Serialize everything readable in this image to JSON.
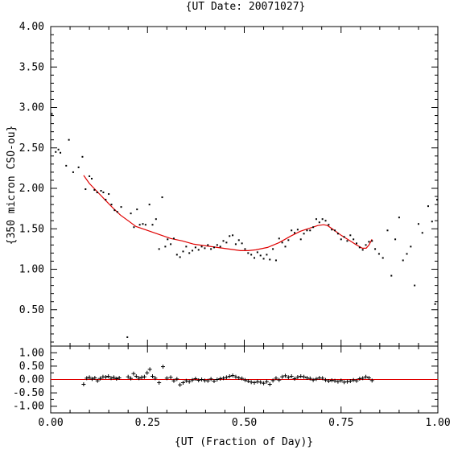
{
  "chart_data": [
    {
      "type": "scatter",
      "title": "{UT Date: 20071027}",
      "xlabel": "",
      "ylabel": "{350 micron CSO-ou}",
      "xlim": [
        0,
        1
      ],
      "ylim": [
        0.05,
        4.0
      ],
      "x_ticks": [
        0.0,
        0.25,
        0.5,
        0.75,
        1.0
      ],
      "x_tick_labels": [],
      "y_ticks": [
        0.5,
        1.0,
        1.5,
        2.0,
        2.5,
        3.0,
        3.5,
        4.0
      ],
      "y_tick_labels": [
        "0.50",
        "1.00",
        "1.50",
        "2.00",
        "2.50",
        "3.00",
        "3.50",
        "4.00"
      ],
      "series": [
        {
          "kind": "points",
          "color": "#000000",
          "x": [
            0.003,
            0.013,
            0.02,
            0.025,
            0.04,
            0.047,
            0.058,
            0.072,
            0.082,
            0.09,
            0.1,
            0.106,
            0.113,
            0.12,
            0.13,
            0.136,
            0.142,
            0.15,
            0.157,
            0.165,
            0.172,
            0.182,
            0.198,
            0.207,
            0.215,
            0.223,
            0.23,
            0.238,
            0.245,
            0.255,
            0.263,
            0.272,
            0.28,
            0.288,
            0.296,
            0.302,
            0.31,
            0.318,
            0.326,
            0.334,
            0.342,
            0.35,
            0.358,
            0.366,
            0.374,
            0.382,
            0.39,
            0.398,
            0.406,
            0.414,
            0.422,
            0.43,
            0.438,
            0.446,
            0.454,
            0.462,
            0.47,
            0.478,
            0.486,
            0.494,
            0.502,
            0.51,
            0.518,
            0.526,
            0.534,
            0.542,
            0.55,
            0.558,
            0.566,
            0.574,
            0.582,
            0.59,
            0.598,
            0.606,
            0.614,
            0.622,
            0.63,
            0.638,
            0.646,
            0.654,
            0.662,
            0.67,
            0.678,
            0.686,
            0.694,
            0.702,
            0.71,
            0.718,
            0.726,
            0.734,
            0.742,
            0.75,
            0.758,
            0.766,
            0.774,
            0.782,
            0.79,
            0.798,
            0.806,
            0.814,
            0.822,
            0.83,
            0.838,
            0.848,
            0.858,
            0.87,
            0.88,
            0.89,
            0.9,
            0.91,
            0.92,
            0.93,
            0.94,
            0.95,
            0.96,
            0.975,
            0.985,
            0.993,
            0.998
          ],
          "y": [
            2.92,
            2.45,
            2.48,
            2.44,
            2.28,
            2.6,
            2.2,
            2.26,
            2.39,
            1.99,
            2.15,
            2.12,
            1.98,
            1.95,
            1.97,
            1.95,
            1.86,
            1.93,
            1.8,
            1.73,
            1.71,
            1.77,
            0.16,
            1.69,
            1.52,
            1.74,
            1.55,
            1.56,
            1.55,
            1.8,
            1.55,
            1.62,
            1.25,
            1.89,
            1.28,
            1.37,
            1.31,
            1.38,
            1.18,
            1.15,
            1.22,
            1.28,
            1.2,
            1.23,
            1.27,
            1.24,
            1.28,
            1.26,
            1.3,
            1.25,
            1.27,
            1.3,
            1.28,
            1.35,
            1.33,
            1.41,
            1.42,
            1.31,
            1.36,
            1.32,
            1.25,
            1.2,
            1.18,
            1.14,
            1.21,
            1.17,
            1.13,
            1.18,
            1.12,
            1.25,
            1.11,
            1.38,
            1.33,
            1.28,
            1.36,
            1.48,
            1.45,
            1.49,
            1.37,
            1.44,
            1.48,
            1.48,
            1.52,
            1.62,
            1.58,
            1.62,
            1.6,
            1.55,
            1.49,
            1.48,
            1.44,
            1.37,
            1.4,
            1.35,
            1.42,
            1.37,
            1.32,
            1.27,
            1.24,
            1.3,
            1.34,
            1.35,
            1.25,
            1.19,
            1.14,
            1.48,
            0.92,
            1.37,
            1.64,
            1.11,
            1.19,
            1.28,
            0.8,
            1.56,
            1.45,
            1.78,
            1.59,
            0.57,
            1.86
          ]
        },
        {
          "kind": "fit",
          "color": "#e00000",
          "x": [
            0.085,
            0.1,
            0.12,
            0.14,
            0.16,
            0.18,
            0.2,
            0.22,
            0.25,
            0.28,
            0.31,
            0.34,
            0.37,
            0.4,
            0.43,
            0.46,
            0.49,
            0.51,
            0.53,
            0.56,
            0.59,
            0.62,
            0.645,
            0.67,
            0.69,
            0.705,
            0.715,
            0.73,
            0.75,
            0.77,
            0.79,
            0.805,
            0.815,
            0.822,
            0.83
          ],
          "y": [
            2.16,
            2.06,
            1.96,
            1.86,
            1.76,
            1.67,
            1.6,
            1.53,
            1.48,
            1.43,
            1.38,
            1.35,
            1.31,
            1.29,
            1.27,
            1.25,
            1.23,
            1.23,
            1.24,
            1.27,
            1.33,
            1.41,
            1.47,
            1.51,
            1.54,
            1.55,
            1.54,
            1.49,
            1.42,
            1.36,
            1.3,
            1.26,
            1.26,
            1.3,
            1.37
          ]
        }
      ]
    },
    {
      "type": "scatter",
      "title": "",
      "xlabel": "{UT (Fraction of Day)}",
      "ylabel": "",
      "xlim": [
        0,
        1
      ],
      "ylim": [
        -1.25,
        1.25
      ],
      "x_ticks": [
        0.0,
        0.25,
        0.5,
        0.75,
        1.0
      ],
      "x_tick_labels": [
        "0.00",
        "0.25",
        "0.50",
        "0.75",
        "1.00"
      ],
      "y_ticks": [
        -1.0,
        -0.5,
        0.0,
        0.5,
        1.0
      ],
      "y_tick_labels": [
        "-1.00",
        "-0.50",
        "0.00",
        "0.50",
        "1.00"
      ],
      "zero_line_color": "#e00000",
      "series": [
        {
          "kind": "residuals",
          "marker": "plus",
          "color": "#000000",
          "x": [
            0.085,
            0.093,
            0.1,
            0.107,
            0.114,
            0.121,
            0.128,
            0.135,
            0.142,
            0.149,
            0.156,
            0.163,
            0.17,
            0.177,
            0.2,
            0.207,
            0.214,
            0.221,
            0.228,
            0.235,
            0.242,
            0.249,
            0.256,
            0.263,
            0.27,
            0.28,
            0.29,
            0.3,
            0.31,
            0.318,
            0.326,
            0.334,
            0.342,
            0.35,
            0.358,
            0.366,
            0.374,
            0.382,
            0.39,
            0.398,
            0.406,
            0.414,
            0.422,
            0.43,
            0.438,
            0.446,
            0.454,
            0.462,
            0.47,
            0.478,
            0.486,
            0.494,
            0.502,
            0.51,
            0.518,
            0.526,
            0.534,
            0.542,
            0.55,
            0.558,
            0.566,
            0.574,
            0.582,
            0.59,
            0.598,
            0.606,
            0.614,
            0.622,
            0.63,
            0.638,
            0.646,
            0.654,
            0.662,
            0.67,
            0.678,
            0.686,
            0.694,
            0.702,
            0.71,
            0.718,
            0.726,
            0.734,
            0.742,
            0.75,
            0.758,
            0.766,
            0.774,
            0.782,
            0.79,
            0.798,
            0.806,
            0.814,
            0.822,
            0.83
          ],
          "y": [
            -0.18,
            0.05,
            0.08,
            0.02,
            0.06,
            -0.05,
            0.04,
            0.1,
            0.09,
            0.12,
            0.05,
            0.08,
            0.03,
            0.06,
            0.1,
            0.04,
            0.22,
            0.12,
            0.05,
            0.08,
            0.1,
            0.25,
            0.38,
            0.12,
            0.05,
            -0.12,
            0.48,
            0.05,
            0.08,
            -0.05,
            0.02,
            -0.2,
            -0.12,
            -0.05,
            -0.08,
            -0.02,
            0.03,
            -0.03,
            0.0,
            -0.04,
            -0.05,
            0.02,
            -0.06,
            0.0,
            0.03,
            0.05,
            0.08,
            0.12,
            0.15,
            0.1,
            0.06,
            0.04,
            -0.02,
            -0.06,
            -0.1,
            -0.12,
            -0.08,
            -0.1,
            -0.14,
            -0.08,
            -0.18,
            -0.04,
            0.05,
            -0.02,
            0.1,
            0.14,
            0.08,
            0.12,
            0.03,
            0.09,
            0.12,
            0.1,
            0.06,
            0.04,
            -0.02,
            0.02,
            0.06,
            0.05,
            -0.02,
            -0.06,
            -0.03,
            -0.05,
            -0.08,
            -0.04,
            -0.1,
            -0.08,
            -0.06,
            -0.02,
            -0.05,
            0.03,
            0.05,
            0.1,
            0.06,
            -0.04
          ]
        }
      ]
    }
  ]
}
